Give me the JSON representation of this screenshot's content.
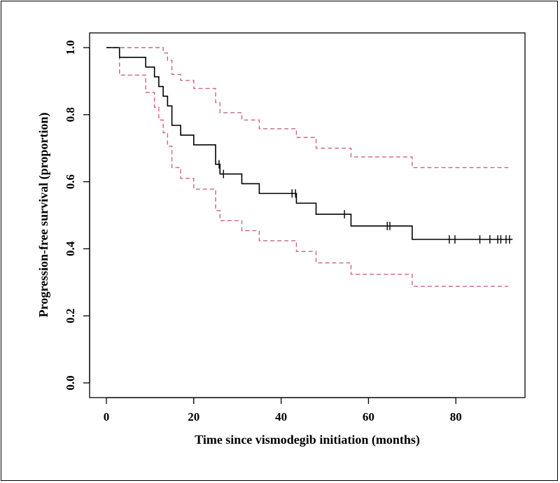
{
  "chart_data": {
    "type": "line",
    "xlabel": "Time since vismodegib initiation (months)",
    "ylabel": "Progression-free survival (proportion)",
    "xlim": [
      0,
      93
    ],
    "ylim": [
      0,
      1
    ],
    "x_ticks": [
      0,
      20,
      40,
      60,
      80
    ],
    "y_ticks": [
      0.0,
      0.2,
      0.4,
      0.6,
      0.8,
      1.0
    ],
    "x_tick_labels": [
      "0",
      "20",
      "40",
      "60",
      "80"
    ],
    "y_tick_labels": [
      "0.0",
      "0.2",
      "0.4",
      "0.6",
      "0.8",
      "1.0"
    ],
    "grid": false,
    "legend": "none",
    "series": [
      {
        "style": "solid",
        "color": "#000000",
        "steps": [
          [
            0,
            1.0
          ],
          [
            3,
            0.971
          ],
          [
            9,
            0.942
          ],
          [
            11,
            0.913
          ],
          [
            12,
            0.884
          ],
          [
            13,
            0.855
          ],
          [
            14,
            0.826
          ],
          [
            15,
            0.768
          ],
          [
            17,
            0.739
          ],
          [
            20,
            0.71
          ],
          [
            25,
            0.652
          ],
          [
            26,
            0.623
          ],
          [
            31,
            0.594
          ],
          [
            35,
            0.565
          ],
          [
            43.5,
            0.536
          ],
          [
            48,
            0.503
          ],
          [
            56,
            0.468
          ],
          [
            70,
            0.428
          ]
        ],
        "end_x": 93,
        "censor_marks": [
          25.8,
          26.8,
          42.5,
          43.3,
          54.5,
          64.3,
          64.9,
          78.5,
          79.8,
          85.5,
          87.8,
          89.6,
          90.3,
          91.5,
          92.3
        ]
      },
      {
        "style": "dashed",
        "color": "#cc6677",
        "steps": [
          [
            0,
            1.0
          ],
          [
            13,
            0.984
          ],
          [
            14,
            0.962
          ],
          [
            15,
            0.92
          ],
          [
            17,
            0.902
          ],
          [
            20,
            0.878
          ],
          [
            25,
            0.836
          ],
          [
            26,
            0.806
          ],
          [
            31,
            0.784
          ],
          [
            35,
            0.758
          ],
          [
            43.5,
            0.732
          ],
          [
            48,
            0.7
          ],
          [
            56,
            0.674
          ],
          [
            70,
            0.642
          ]
        ],
        "end_x": 92
      },
      {
        "style": "dashed",
        "color": "#cc6677",
        "steps": [
          [
            0,
            1.0
          ],
          [
            3,
            0.918
          ],
          [
            9,
            0.866
          ],
          [
            11,
            0.822
          ],
          [
            12,
            0.784
          ],
          [
            13,
            0.746
          ],
          [
            14,
            0.706
          ],
          [
            15,
            0.642
          ],
          [
            17,
            0.61
          ],
          [
            20,
            0.578
          ],
          [
            25,
            0.514
          ],
          [
            26,
            0.484
          ],
          [
            31,
            0.454
          ],
          [
            35,
            0.424
          ],
          [
            43.5,
            0.392
          ],
          [
            48,
            0.358
          ],
          [
            56,
            0.324
          ],
          [
            70,
            0.288
          ]
        ],
        "end_x": 92
      }
    ]
  }
}
